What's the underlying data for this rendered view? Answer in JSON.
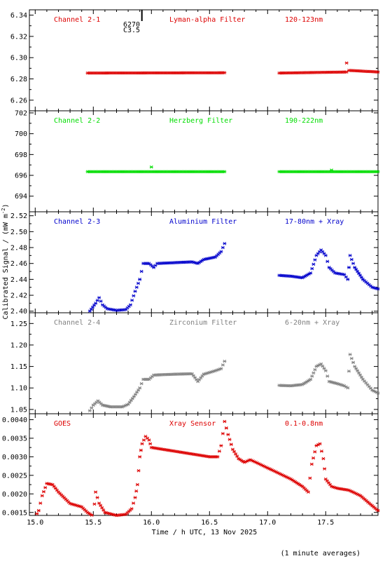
{
  "figure": {
    "ylabel": "Calibrated Signal / (mW m",
    "ylabel_sup": "-2",
    "ylabel_end": ")",
    "xlabel": "Time / h UTC, 13 Nov 2025",
    "footnote": "(1 minute averages)",
    "marker_label_1": "6270",
    "marker_label_2": "C3.5"
  },
  "chart_data": [
    {
      "type": "scatter",
      "color": "#dd0000",
      "labels": {
        "channel": "Channel 2-1",
        "filter": "Lyman-alpha Filter",
        "band": "120-123nm"
      },
      "ylim": [
        6.25,
        6.345
      ],
      "yticks": [
        6.26,
        6.28,
        6.3,
        6.32,
        6.34
      ],
      "ytick_decimals": 2,
      "segments": [
        {
          "x": [
            15.45,
            16.63
          ],
          "y": [
            6.2855,
            6.2858
          ]
        },
        {
          "x": [
            17.1,
            17.68
          ],
          "y": [
            6.2855,
            6.2865
          ]
        },
        {
          "x": [
            17.7,
            17.95
          ],
          "y": [
            6.288,
            6.2865
          ]
        }
      ],
      "spikes": [
        {
          "x": 17.68,
          "y": 6.295
        }
      ]
    },
    {
      "type": "scatter",
      "color": "#00dd00",
      "labels": {
        "channel": "Channel 2-2",
        "filter": "Herzberg Filter",
        "band": "190-222nm"
      },
      "ylim": [
        692.5,
        702.2
      ],
      "yticks": [
        694,
        696,
        698,
        700,
        702
      ],
      "ytick_decimals": 0,
      "segments": [
        {
          "x": [
            15.45,
            16.63
          ],
          "y": [
            696.35,
            696.35
          ]
        },
        {
          "x": [
            17.1,
            17.95
          ],
          "y": [
            696.35,
            696.35
          ]
        }
      ],
      "spikes": [
        {
          "x": 16.0,
          "y": 696.8
        },
        {
          "x": 17.55,
          "y": 696.5
        }
      ]
    },
    {
      "type": "scatter",
      "color": "#0000cc",
      "labels": {
        "channel": "Channel 2-3",
        "filter": "Aluminium Filter",
        "band": "17-80nm + Xray"
      },
      "ylim": [
        2.398,
        2.525
      ],
      "yticks": [
        2.4,
        2.42,
        2.44,
        2.46,
        2.48,
        2.5,
        2.52
      ],
      "ytick_decimals": 2,
      "segments": [
        {
          "pts": [
            [
              15.47,
              2.4
            ],
            [
              15.52,
              2.41
            ],
            [
              15.55,
              2.417
            ],
            [
              15.58,
              2.408
            ],
            [
              15.62,
              2.403
            ],
            [
              15.7,
              2.401
            ],
            [
              15.78,
              2.402
            ],
            [
              15.82,
              2.408
            ],
            [
              15.86,
              2.425
            ],
            [
              15.9,
              2.44
            ],
            [
              15.93,
              2.46
            ],
            [
              15.98,
              2.46
            ],
            [
              16.02,
              2.455
            ],
            [
              16.05,
              2.46
            ],
            [
              16.2,
              2.461
            ],
            [
              16.35,
              2.462
            ],
            [
              16.4,
              2.46
            ],
            [
              16.45,
              2.465
            ],
            [
              16.55,
              2.468
            ],
            [
              16.6,
              2.475
            ],
            [
              16.63,
              2.485
            ]
          ]
        },
        {
          "pts": [
            [
              17.1,
              2.445
            ],
            [
              17.2,
              2.444
            ],
            [
              17.3,
              2.442
            ],
            [
              17.37,
              2.448
            ],
            [
              17.42,
              2.47
            ],
            [
              17.46,
              2.477
            ],
            [
              17.5,
              2.47
            ],
            [
              17.53,
              2.455
            ],
            [
              17.58,
              2.448
            ],
            [
              17.66,
              2.446
            ],
            [
              17.69,
              2.44
            ],
            [
              17.71,
              2.47
            ],
            [
              17.75,
              2.455
            ],
            [
              17.82,
              2.44
            ],
            [
              17.9,
              2.43
            ],
            [
              17.95,
              2.428
            ]
          ]
        }
      ],
      "spikes": []
    },
    {
      "type": "scatter",
      "color": "#808080",
      "labels": {
        "channel": "Channel 2-4",
        "filter": "Zirconium Filter",
        "band": "6-20nm + Xray"
      },
      "ylim": [
        1.04,
        1.275
      ],
      "yticks": [
        1.05,
        1.1,
        1.15,
        1.2,
        1.25
      ],
      "ytick_decimals": 2,
      "segments": [
        {
          "pts": [
            [
              15.47,
              1.047
            ],
            [
              15.5,
              1.06
            ],
            [
              15.54,
              1.07
            ],
            [
              15.58,
              1.06
            ],
            [
              15.65,
              1.056
            ],
            [
              15.75,
              1.056
            ],
            [
              15.8,
              1.062
            ],
            [
              15.85,
              1.08
            ],
            [
              15.9,
              1.1
            ],
            [
              15.93,
              1.12
            ],
            [
              15.98,
              1.12
            ],
            [
              16.02,
              1.13
            ],
            [
              16.2,
              1.132
            ],
            [
              16.35,
              1.133
            ],
            [
              16.4,
              1.115
            ],
            [
              16.45,
              1.132
            ],
            [
              16.55,
              1.14
            ],
            [
              16.6,
              1.145
            ],
            [
              16.63,
              1.162
            ]
          ]
        },
        {
          "pts": [
            [
              17.1,
              1.106
            ],
            [
              17.2,
              1.105
            ],
            [
              17.3,
              1.108
            ],
            [
              17.37,
              1.12
            ],
            [
              17.42,
              1.15
            ],
            [
              17.46,
              1.156
            ],
            [
              17.5,
              1.14
            ],
            [
              17.53,
              1.115
            ],
            [
              17.6,
              1.11
            ],
            [
              17.66,
              1.105
            ],
            [
              17.69,
              1.1
            ],
            [
              17.71,
              1.178
            ],
            [
              17.75,
              1.15
            ],
            [
              17.82,
              1.12
            ],
            [
              17.9,
              1.095
            ],
            [
              17.95,
              1.088
            ]
          ]
        }
      ],
      "spikes": []
    },
    {
      "type": "scatter",
      "color": "#dd0000",
      "labels": {
        "channel": "GOES",
        "filter": "Xray Sensor",
        "band": "0.1-0.8nm"
      },
      "ylim": [
        0.00142,
        0.00416
      ],
      "yticks": [
        0.0015,
        0.002,
        0.0025,
        0.003,
        0.0035,
        0.004
      ],
      "ytick_decimals": 4,
      "segments": [
        {
          "pts": [
            [
              14.95,
              0.00137
            ],
            [
              15.0,
              0.00138
            ],
            [
              15.03,
              0.00155
            ],
            [
              15.06,
              0.00195
            ],
            [
              15.1,
              0.00228
            ],
            [
              15.15,
              0.00225
            ],
            [
              15.2,
              0.00205
            ],
            [
              15.3,
              0.00174
            ],
            [
              15.4,
              0.00165
            ],
            [
              15.45,
              0.0015
            ],
            [
              15.5,
              0.0014
            ],
            [
              15.52,
              0.00205
            ],
            [
              15.55,
              0.00175
            ],
            [
              15.6,
              0.0015
            ],
            [
              15.7,
              0.00142
            ],
            [
              15.78,
              0.00145
            ],
            [
              15.83,
              0.0016
            ],
            [
              15.86,
              0.0019
            ],
            [
              15.88,
              0.00225
            ],
            [
              15.9,
              0.003
            ],
            [
              15.92,
              0.00335
            ],
            [
              15.95,
              0.00355
            ],
            [
              15.98,
              0.00345
            ],
            [
              16.0,
              0.00325
            ],
            [
              16.1,
              0.0032
            ],
            [
              16.2,
              0.00315
            ],
            [
              16.3,
              0.0031
            ],
            [
              16.4,
              0.00305
            ],
            [
              16.5,
              0.003
            ],
            [
              16.57,
              0.003
            ],
            [
              16.6,
              0.0033
            ],
            [
              16.63,
              0.00395
            ],
            [
              16.66,
              0.0036
            ],
            [
              16.7,
              0.0032
            ],
            [
              16.75,
              0.00295
            ],
            [
              16.8,
              0.00285
            ],
            [
              16.85,
              0.00292
            ],
            [
              16.9,
              0.00285
            ],
            [
              17.0,
              0.0027
            ],
            [
              17.1,
              0.00255
            ],
            [
              17.2,
              0.0024
            ],
            [
              17.3,
              0.0022
            ],
            [
              17.35,
              0.00205
            ],
            [
              17.38,
              0.0028
            ],
            [
              17.42,
              0.0033
            ],
            [
              17.45,
              0.00335
            ],
            [
              17.48,
              0.00295
            ],
            [
              17.5,
              0.0024
            ],
            [
              17.55,
              0.0022
            ],
            [
              17.6,
              0.00215
            ],
            [
              17.7,
              0.0021
            ],
            [
              17.8,
              0.00195
            ],
            [
              17.9,
              0.00168
            ],
            [
              17.95,
              0.00155
            ]
          ]
        }
      ],
      "spikes": []
    }
  ],
  "x_axis": {
    "xlim": [
      14.95,
      17.95
    ],
    "ticks": [
      {
        "v": 15.0,
        "label": "15.0"
      },
      {
        "v": 15.5,
        "label": "15.5"
      },
      {
        "v": 16.0,
        "label": "16.0"
      },
      {
        "v": 16.5,
        "label": "16.5"
      },
      {
        "v": 17.0,
        "label": "17.0"
      },
      {
        "v": 17.5,
        "label": "17.5"
      }
    ],
    "minor_step": 0.1
  },
  "marker": {
    "x": 15.9
  }
}
